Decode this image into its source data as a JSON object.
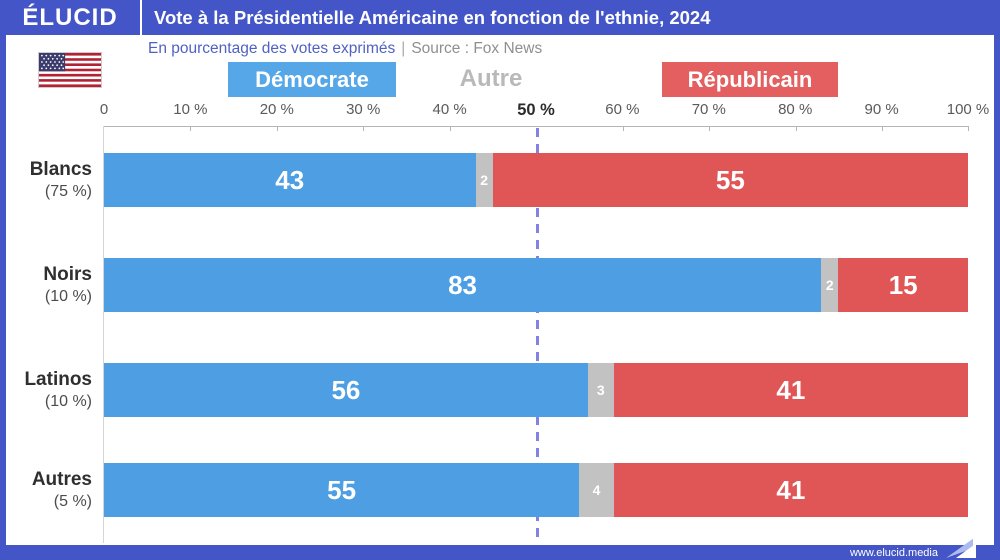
{
  "header": {
    "brand": "ÉLUCID",
    "title": "Vote à la Présidentielle Américaine en fonction de l'ethnie, 2024"
  },
  "subtitle": {
    "text": "En pourcentage des votes exprimés",
    "separator": "|",
    "source": "Source : Fox News"
  },
  "footer": {
    "url": "www.elucid.media"
  },
  "colors": {
    "frame_blue": "#4355c7",
    "democrat_blue": "#4d9ee2",
    "republican_red": "#e05656",
    "other_gray": "#c2c2c2",
    "reference_line_violet": "#8181e6"
  },
  "chart_data": {
    "type": "bar",
    "orientation": "horizontal-stacked",
    "title": "Vote à la Présidentielle Américaine en fonction de l'ethnie, 2024",
    "subtitle": "En pourcentage des votes exprimés",
    "source": "Source : Fox News",
    "xlim": [
      0,
      100
    ],
    "legend_position": "top",
    "categories": [
      "Blancs",
      "Noirs",
      "Latinos",
      "Autres"
    ],
    "category_shares": [
      "(75 %)",
      "(10 %)",
      "(10 %)",
      "(5 %)"
    ],
    "series": [
      {
        "name": "Démocrate",
        "color": "#4d9ee2",
        "values": [
          43,
          83,
          56,
          55
        ]
      },
      {
        "name": "Autre",
        "color": "#c2c2c2",
        "values": [
          2,
          2,
          3,
          4
        ]
      },
      {
        "name": "Républicain",
        "color": "#e05656",
        "values": [
          55,
          15,
          41,
          41
        ]
      }
    ],
    "ticks": [
      "0",
      "10 %",
      "20 %",
      "30 %",
      "40 %",
      "50 %",
      "60 %",
      "70 %",
      "80 %",
      "90 %",
      "100 %"
    ],
    "reference_line": {
      "x": 50,
      "label": "50 %"
    }
  }
}
